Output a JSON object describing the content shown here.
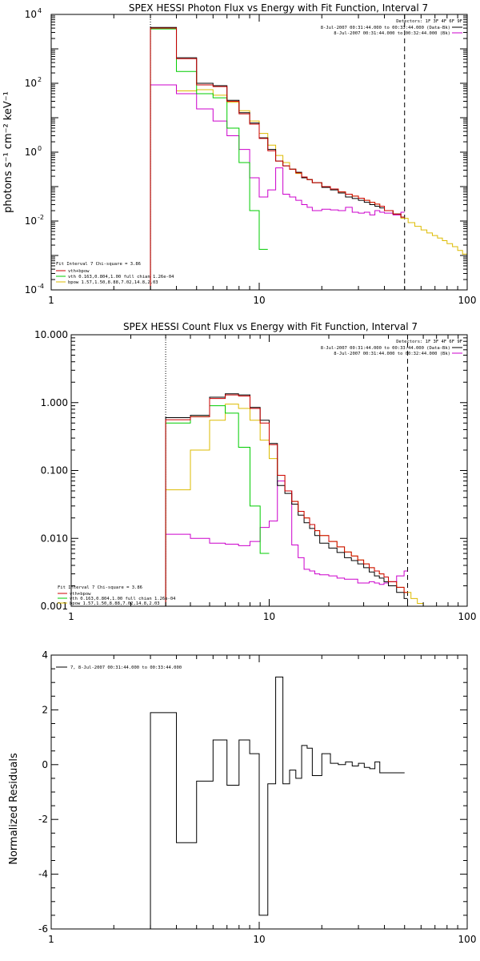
{
  "colors": {
    "total": "#000000",
    "model": "#cc0000",
    "vth": "#00cc00",
    "bpow": "#ddbb00",
    "background": "#cc00cc",
    "axes": "#000000"
  },
  "chart_data": [
    {
      "id": "photon",
      "type": "line",
      "step": true,
      "title": "SPEX HESSI Photon Flux vs Energy with Fit Function, Interval 7",
      "ylabel": "photons s⁻¹ cm⁻² keV⁻¹",
      "xscale": "log",
      "yscale": "log",
      "xlim": [
        1,
        100
      ],
      "ylim": [
        0.0001,
        10000
      ],
      "xticks": [
        {
          "v": 1,
          "label": "1"
        },
        {
          "v": 10,
          "label": "10"
        },
        {
          "v": 100,
          "label": "100"
        }
      ],
      "yticks": [
        {
          "v": 0.0001,
          "label": "10",
          "exp": "-4"
        },
        {
          "v": 0.01,
          "label": "10",
          "exp": "-2"
        },
        {
          "v": 1,
          "label": "10",
          "exp": "0"
        },
        {
          "v": 100,
          "label": "10",
          "exp": "2"
        },
        {
          "v": 10000,
          "label": "10",
          "exp": "4"
        }
      ],
      "vlines": [
        {
          "x": 3,
          "style": "dotted"
        },
        {
          "x": 50,
          "style": "dashed"
        }
      ],
      "legend_tr": {
        "detectors": "Detectors: 1F 3F 4F 6F 9F",
        "entries": [
          {
            "text": "8-Jul-2007 00:31:44.000 to 00:33:44.000 (Data-Bk)",
            "color": "#000000"
          },
          {
            "text": "8-Jul-2007 00:31:44.000 to 00:32:44.000 (Bk)",
            "color": "#cc00cc"
          }
        ]
      },
      "legend_bl": {
        "header": "Fit Interval 7   Chi-square = 3.86",
        "entries": [
          {
            "text": "vth+bpow",
            "color": "#cc0000"
          },
          {
            "text": "vth 0.163,0.804,1.00  full chian 1.26e-04",
            "color": "#00cc00"
          },
          {
            "text": "bpow 1.57,1.50,8.88,7.02,14.8,2.03",
            "color": "#ddbb00"
          }
        ]
      },
      "series": [
        {
          "key": "bpow",
          "color": "#ddbb00",
          "edges": [
            3,
            4,
            5,
            6,
            7,
            8,
            9,
            10,
            11,
            12,
            13,
            14,
            15,
            16,
            17,
            18,
            20,
            22,
            24,
            26,
            28,
            30,
            32,
            34,
            36,
            38,
            40,
            44,
            48,
            52,
            56,
            60,
            64,
            68,
            72,
            76,
            80,
            85,
            90,
            95,
            100
          ],
          "values": [
            90,
            60,
            65,
            45,
            28,
            16,
            8,
            3.5,
            1.6,
            0.8,
            0.5,
            0.32,
            0.24,
            0.19,
            0.16,
            0.13,
            0.1,
            0.085,
            0.07,
            0.06,
            0.053,
            0.046,
            0.04,
            0.035,
            0.031,
            0.027,
            0.02,
            0.016,
            0.012,
            0.009,
            0.007,
            0.0055,
            0.0045,
            0.0038,
            0.0032,
            0.0027,
            0.0022,
            0.0018,
            0.0014,
            0.0011
          ]
        },
        {
          "key": "background",
          "color": "#cc00cc",
          "edges": [
            3,
            4,
            5,
            6,
            7,
            8,
            9,
            10,
            11,
            12,
            13,
            14,
            15,
            16,
            17,
            18,
            20,
            22,
            24,
            26,
            28,
            30,
            32,
            34,
            36,
            38,
            40,
            44,
            48,
            50
          ],
          "values": [
            90,
            50,
            18,
            8,
            3,
            1.2,
            0.18,
            0.05,
            0.08,
            0.35,
            0.06,
            0.05,
            0.04,
            0.03,
            0.025,
            0.02,
            0.022,
            0.021,
            0.02,
            0.025,
            0.018,
            0.017,
            0.018,
            0.015,
            0.02,
            0.018,
            0.017,
            0.015,
            0.018
          ]
        },
        {
          "key": "vth",
          "color": "#00cc00",
          "edges": [
            3,
            4,
            5,
            6,
            7,
            8,
            9,
            10,
            11
          ],
          "values": [
            3800,
            220,
            50,
            38,
            5,
            0.5,
            0.02,
            0.0015
          ]
        },
        {
          "key": "total",
          "color": "#000000",
          "edges": [
            3,
            4,
            5,
            6,
            7,
            8,
            9,
            10,
            11,
            12,
            13,
            14,
            15,
            16,
            17,
            18,
            20,
            22,
            24,
            26,
            28,
            30,
            32,
            34,
            36,
            38,
            40,
            44,
            48,
            50
          ],
          "values": [
            4200,
            550,
            100,
            85,
            32,
            14,
            7,
            2.6,
            1.2,
            0.55,
            0.4,
            0.32,
            0.26,
            0.18,
            0.16,
            0.13,
            0.095,
            0.08,
            0.065,
            0.05,
            0.045,
            0.04,
            0.035,
            0.03,
            0.027,
            0.024,
            0.02,
            0.016,
            0.013
          ]
        },
        {
          "key": "model",
          "color": "#cc0000",
          "edges": [
            3,
            4,
            5,
            6,
            7,
            8,
            9,
            10,
            11,
            12,
            13,
            14,
            15,
            16,
            17,
            18,
            20,
            22,
            24,
            26,
            28,
            30,
            32,
            34,
            36,
            38,
            40,
            44,
            48,
            50
          ],
          "values": [
            4000,
            520,
            90,
            80,
            30,
            13,
            6.5,
            2.5,
            1.1,
            0.55,
            0.4,
            0.32,
            0.25,
            0.19,
            0.16,
            0.13,
            0.1,
            0.085,
            0.07,
            0.06,
            0.053,
            0.046,
            0.04,
            0.035,
            0.031,
            0.027,
            0.02,
            0.016,
            0.013
          ]
        }
      ]
    },
    {
      "id": "count",
      "type": "line",
      "step": true,
      "title": "SPEX HESSI Count Flux vs Energy with Fit Function, Interval 7",
      "ylabel": "",
      "xscale": "log",
      "yscale": "log",
      "xlim": [
        1,
        100
      ],
      "ylim": [
        0.001,
        10
      ],
      "xticks": [
        {
          "v": 1,
          "label": "1"
        },
        {
          "v": 10,
          "label": "10"
        },
        {
          "v": 100,
          "label": "100"
        }
      ],
      "yticks": [
        {
          "v": 0.001,
          "label": "0.001"
        },
        {
          "v": 0.01,
          "label": "0.010"
        },
        {
          "v": 0.1,
          "label": "0.100"
        },
        {
          "v": 1,
          "label": "1.000"
        },
        {
          "v": 10,
          "label": "10.000"
        }
      ],
      "vlines": [
        {
          "x": 3,
          "style": "dotted"
        },
        {
          "x": 50,
          "style": "dashed"
        }
      ],
      "legend_tr": {
        "detectors": "Detectors: 1F 3F 4F 6F 9F",
        "entries": [
          {
            "text": "8-Jul-2007 00:31:44.000 to 00:33:44.000 (Data-Bk)",
            "color": "#000000"
          },
          {
            "text": "8-Jul-2007 00:31:44.000 to 00:32:44.000 (Bk)",
            "color": "#cc00cc"
          }
        ]
      },
      "legend_bl": {
        "header": "Fit Interval 7   Chi-square = 3.86",
        "entries": [
          {
            "text": "vth+bpow",
            "color": "#cc0000"
          },
          {
            "text": "vth 0.163,0.804,1.00  full chian 1.26e-04",
            "color": "#00cc00"
          },
          {
            "text": "bpow 1.57,1.50,8.88,7.02,14.8,2.03",
            "color": "#ddbb00"
          }
        ]
      },
      "series": [
        {
          "key": "bpow",
          "color": "#ddbb00",
          "edges": [
            3,
            4,
            5,
            6,
            7,
            8,
            9,
            10,
            11,
            12,
            13,
            14,
            15,
            16,
            17,
            18,
            20,
            22,
            24,
            26,
            28,
            30,
            32,
            34,
            36,
            38,
            40,
            44,
            48,
            52,
            56,
            60,
            64,
            68
          ],
          "values": [
            0.052,
            0.2,
            0.55,
            0.95,
            0.82,
            0.55,
            0.28,
            0.15,
            0.085,
            0.05,
            0.035,
            0.025,
            0.02,
            0.016,
            0.013,
            0.011,
            0.009,
            0.0075,
            0.0063,
            0.0055,
            0.0048,
            0.0042,
            0.0037,
            0.0033,
            0.003,
            0.0027,
            0.0023,
            0.0019,
            0.0016,
            0.0013,
            0.0011,
            0.001,
            0.0009
          ]
        },
        {
          "key": "background",
          "color": "#cc00cc",
          "edges": [
            3,
            4,
            5,
            6,
            7,
            8,
            9,
            10,
            11,
            12,
            13,
            14,
            15,
            16,
            17,
            18,
            20,
            22,
            24,
            26,
            28,
            30,
            32,
            34,
            36,
            38,
            40,
            44,
            48,
            50
          ],
          "values": [
            0.0115,
            0.01,
            0.0085,
            0.0082,
            0.0078,
            0.009,
            0.0145,
            0.018,
            0.07,
            0.05,
            0.008,
            0.0052,
            0.0035,
            0.0033,
            0.003,
            0.0029,
            0.0028,
            0.0026,
            0.0025,
            0.0025,
            0.0022,
            0.0022,
            0.0023,
            0.0022,
            0.0021,
            0.0022,
            0.0023,
            0.0028,
            0.0033
          ]
        },
        {
          "key": "vth",
          "color": "#00cc00",
          "edges": [
            3,
            4,
            5,
            6,
            7,
            8,
            9,
            10
          ],
          "values": [
            0.5,
            0.62,
            0.9,
            0.7,
            0.22,
            0.03,
            0.006
          ]
        },
        {
          "key": "total",
          "color": "#000000",
          "edges": [
            3,
            4,
            5,
            6,
            7,
            8,
            9,
            10,
            11,
            12,
            13,
            14,
            15,
            16,
            17,
            18,
            20,
            22,
            24,
            26,
            28,
            30,
            32,
            34,
            36,
            38,
            40,
            44,
            48,
            50
          ],
          "values": [
            0.6,
            0.65,
            1.2,
            1.35,
            1.3,
            0.85,
            0.55,
            0.25,
            0.06,
            0.046,
            0.032,
            0.022,
            0.017,
            0.014,
            0.011,
            0.0085,
            0.0072,
            0.0062,
            0.0052,
            0.0047,
            0.0042,
            0.0037,
            0.0032,
            0.0028,
            0.0026,
            0.0023,
            0.002,
            0.0016,
            0.0013
          ]
        },
        {
          "key": "model",
          "color": "#cc0000",
          "edges": [
            3,
            4,
            5,
            6,
            7,
            8,
            9,
            10,
            11,
            12,
            13,
            14,
            15,
            16,
            17,
            18,
            20,
            22,
            24,
            26,
            28,
            30,
            32,
            34,
            36,
            38,
            40,
            44,
            48,
            50
          ],
          "values": [
            0.56,
            0.62,
            1.15,
            1.3,
            1.25,
            0.82,
            0.5,
            0.24,
            0.085,
            0.05,
            0.035,
            0.025,
            0.02,
            0.016,
            0.013,
            0.011,
            0.009,
            0.0075,
            0.0063,
            0.0055,
            0.0048,
            0.0042,
            0.0037,
            0.0033,
            0.003,
            0.0027,
            0.0023,
            0.0019,
            0.0016
          ]
        }
      ]
    },
    {
      "id": "resid",
      "type": "line",
      "step": true,
      "title": "",
      "ylabel": "Normalized Residuals",
      "xscale": "log",
      "yscale": "linear",
      "xlim": [
        1,
        100
      ],
      "ylim": [
        -6,
        4
      ],
      "xticks": [
        {
          "v": 1,
          "label": "1"
        },
        {
          "v": 10,
          "label": "10"
        },
        {
          "v": 100,
          "label": "100"
        }
      ],
      "yticks": [
        {
          "v": -6,
          "label": "-6"
        },
        {
          "v": -4,
          "label": "-4"
        },
        {
          "v": -2,
          "label": "-2"
        },
        {
          "v": 0,
          "label": "0"
        },
        {
          "v": 2,
          "label": "2"
        },
        {
          "v": 4,
          "label": "4"
        }
      ],
      "legend_tl": {
        "text": "7,  8-Jul-2007 00:31:44.000 to 00:33:44.000",
        "color": "#000000"
      },
      "series": [
        {
          "key": "resid",
          "color": "#000000",
          "edges": [
            3,
            4,
            5,
            6,
            7,
            8,
            9,
            10,
            11,
            12,
            13,
            14,
            15,
            16,
            17,
            18,
            20,
            22,
            24,
            26,
            28,
            30,
            32,
            34,
            36,
            38,
            40,
            44,
            48,
            50
          ],
          "values": [
            1.9,
            -2.85,
            -0.6,
            0.9,
            -0.75,
            0.9,
            0.4,
            -5.5,
            -0.7,
            3.2,
            -0.7,
            -0.2,
            -0.5,
            0.7,
            0.6,
            -0.4,
            0.4,
            0.05,
            0,
            0.1,
            -0.05,
            0.05,
            -0.1,
            -0.15,
            0.1,
            -0.3,
            -0.3,
            -0.3,
            -0.3
          ]
        }
      ]
    }
  ]
}
